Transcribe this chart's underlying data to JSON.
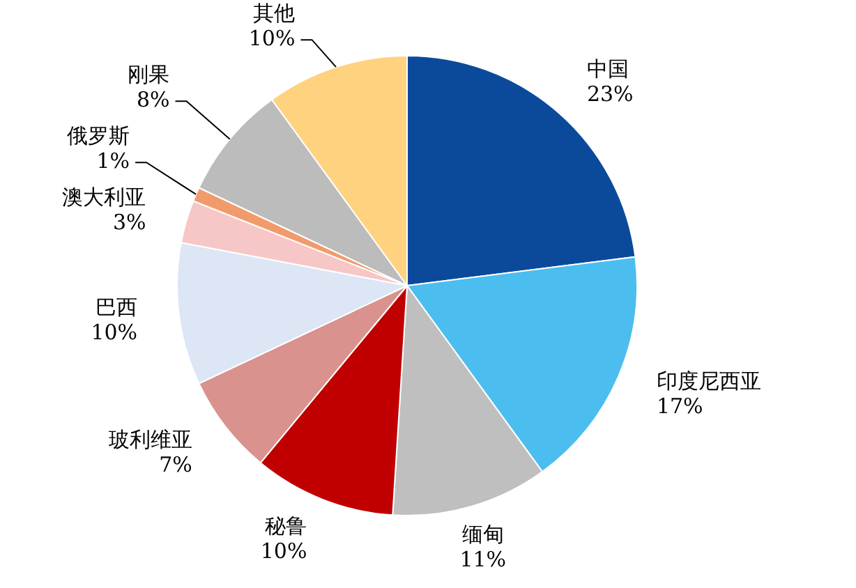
{
  "chart_data": {
    "type": "pie",
    "categories": [
      "中国",
      "印度尼西亚",
      "缅甸",
      "秘鲁",
      "玻利维亚",
      "巴西",
      "澳大利亚",
      "俄罗斯",
      "刚果",
      "其他"
    ],
    "values": [
      23,
      17,
      11,
      10,
      7,
      10,
      3,
      1,
      8,
      10
    ],
    "value_labels": [
      "23%",
      "17%",
      "11%",
      "10%",
      "7%",
      "10%",
      "3%",
      "1%",
      "8%",
      "10%"
    ],
    "colors": [
      "#0b4a9b",
      "#4cbdef",
      "#bfbfbf",
      "#c00000",
      "#d9928d",
      "#dce6f4",
      "#f7c6c6",
      "#f19b6c",
      "#bcbcbc",
      "#ffd27f"
    ]
  }
}
